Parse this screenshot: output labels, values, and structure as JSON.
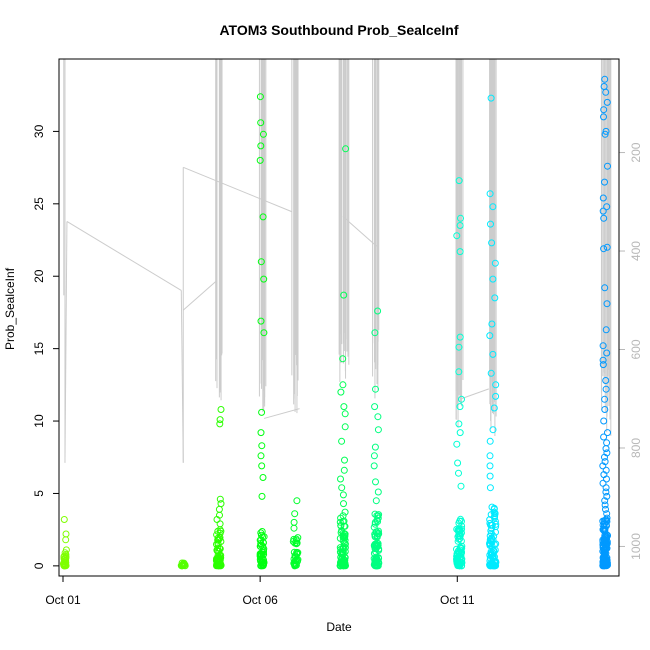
{
  "chart_data": {
    "type": "scatter",
    "title": "ATOM3 Southbound Prob_SealceInf",
    "xlabel": "Date",
    "ylabel": "Prob_SealceInf",
    "x_range_days": [
      0.0,
      14.0
    ],
    "ylim": [
      -0.7,
      35.0
    ],
    "x_ticks": [
      {
        "day": 0,
        "label": "Oct 01"
      },
      {
        "day": 5,
        "label": "Oct 06"
      },
      {
        "day": 10,
        "label": "Oct 11"
      }
    ],
    "y_ticks": [
      0,
      5,
      10,
      15,
      20,
      25,
      30
    ],
    "y2_range": [
      10,
      1060
    ],
    "y2_ticks": [
      200,
      400,
      600,
      800,
      1000
    ],
    "colors": {
      "axis": "#000000",
      "right_axis": "#b8b8b8",
      "depth_line": "#cccccc"
    },
    "clusters": [
      {
        "day": 0.05,
        "color": "#7fff00",
        "outliers": [
          3.2,
          2.2,
          1.8,
          1.1,
          0.9
        ],
        "dense": 25,
        "dense_max": 0.8,
        "spread": 0.08
      },
      {
        "day": 3.05,
        "color": "#55ff00",
        "outliers": [
          0.2
        ],
        "dense": 12,
        "dense_max": 0.2,
        "spread": 0.1
      },
      {
        "day": 3.95,
        "color": "#2bff00",
        "outliers": [
          10.8,
          10.1,
          9.8,
          4.6,
          4.3,
          3.9,
          3.5,
          3.2,
          2.9
        ],
        "dense": 60,
        "dense_max": 2.6,
        "spread": 0.12
      },
      {
        "day": 5.05,
        "color": "#00ff11",
        "outliers": [
          32.4,
          30.6,
          29.8,
          29.0,
          28.0,
          24.1,
          21.0,
          19.8,
          16.9,
          16.1,
          10.6,
          9.2,
          8.3,
          7.6,
          6.9,
          6.1,
          4.8
        ],
        "dense": 45,
        "dense_max": 2.6,
        "spread": 0.1
      },
      {
        "day": 5.9,
        "color": "#00ff2b",
        "outliers": [
          4.5,
          3.6,
          3.0,
          2.6
        ],
        "dense": 30,
        "dense_max": 2.0,
        "spread": 0.12
      },
      {
        "day": 7.1,
        "color": "#00ff55",
        "outliers": [
          28.8,
          18.7,
          14.3,
          12.5,
          12.0,
          11.0,
          10.5,
          9.6,
          8.6,
          7.3,
          6.6,
          6.0,
          5.4,
          4.9,
          4.3
        ],
        "dense": 80,
        "dense_max": 4.0,
        "spread": 0.14
      },
      {
        "day": 7.95,
        "color": "#00ff80",
        "outliers": [
          17.6,
          16.1,
          12.2,
          11.0,
          10.3,
          9.4,
          8.2,
          7.6,
          6.9,
          5.8,
          5.1,
          4.5
        ],
        "dense": 75,
        "dense_max": 3.8,
        "spread": 0.12
      },
      {
        "day": 10.05,
        "color": "#00ffd4",
        "outliers": [
          26.6,
          24.0,
          23.5,
          22.8,
          21.7,
          15.8,
          15.1,
          13.4,
          11.5,
          11.0,
          9.8,
          9.2,
          8.4,
          7.1,
          6.4,
          5.5
        ],
        "dense": 80,
        "dense_max": 3.5,
        "spread": 0.14
      },
      {
        "day": 10.9,
        "color": "#00eaff",
        "outliers": [
          32.3,
          25.7,
          24.8,
          23.6,
          22.3,
          20.9,
          19.8,
          18.5,
          16.7,
          15.9,
          14.6,
          13.3,
          12.5,
          11.7,
          10.9,
          9.4,
          8.6,
          7.6,
          6.9,
          6.2,
          5.4
        ],
        "dense": 90,
        "dense_max": 4.2,
        "spread": 0.16
      },
      {
        "day": 13.75,
        "color": "#0099ff",
        "outliers": [
          33.6,
          33.1,
          32.7,
          32.0,
          31.5,
          31.0,
          30.0,
          29.8,
          27.6,
          26.5,
          25.4,
          24.8,
          24.5,
          24.0,
          22.0,
          21.9,
          19.2,
          18.1,
          16.3,
          15.2,
          14.7,
          14.2,
          13.9,
          12.8,
          12.2,
          11.5,
          10.8,
          10.0,
          9.2,
          8.9,
          8.5,
          8.1,
          7.8,
          7.5,
          7.2,
          6.9,
          6.6,
          6.3,
          6.0,
          5.7,
          5.4,
          5.1,
          4.8,
          4.5,
          4.2,
          3.9,
          3.6,
          3.3
        ],
        "dense": 120,
        "dense_max": 3.2,
        "spread": 0.12
      }
    ]
  }
}
